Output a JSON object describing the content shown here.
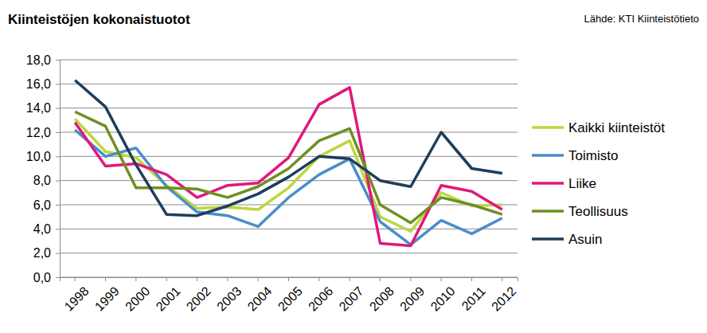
{
  "chart_data": {
    "type": "line",
    "title": "Kiinteistöjen kokonaistuotot",
    "source": "Lähde: KTI Kiinteistötieto",
    "categories": [
      "1998",
      "1999",
      "2000",
      "2001",
      "2002",
      "2003",
      "2004",
      "2005",
      "2006",
      "2007",
      "2008",
      "2009",
      "2010",
      "2011",
      "2012"
    ],
    "series": [
      {
        "name": "Kaikki kiinteistöt",
        "color": "#bdd73e",
        "values": [
          13.1,
          10.4,
          9.9,
          7.6,
          5.7,
          5.8,
          5.6,
          7.4,
          10.0,
          11.3,
          5.0,
          3.8,
          7.0,
          5.9,
          6.0
        ]
      },
      {
        "name": "Toimisto",
        "color": "#4a8ec9",
        "values": [
          12.2,
          10.0,
          10.7,
          7.5,
          5.4,
          5.1,
          4.2,
          6.6,
          8.5,
          9.8,
          4.6,
          2.7,
          4.7,
          3.6,
          4.9
        ]
      },
      {
        "name": "Liike",
        "color": "#e2177c",
        "values": [
          12.8,
          9.2,
          9.4,
          8.5,
          6.6,
          7.6,
          7.8,
          9.9,
          14.3,
          15.7,
          2.8,
          2.6,
          7.6,
          7.1,
          5.6
        ]
      },
      {
        "name": "Teollisuus",
        "color": "#6e8f24",
        "values": [
          13.7,
          12.5,
          7.4,
          7.4,
          7.3,
          6.6,
          7.5,
          9.0,
          11.3,
          12.3,
          6.0,
          4.5,
          6.6,
          6.0,
          5.2
        ]
      },
      {
        "name": "Asuin",
        "color": "#1f3d5c",
        "values": [
          16.3,
          14.1,
          9.3,
          5.2,
          5.1,
          5.9,
          6.9,
          8.3,
          10.0,
          9.8,
          8.0,
          7.5,
          12.0,
          9.0,
          8.6
        ]
      }
    ],
    "ylim": [
      0,
      18
    ],
    "yticks": [
      {
        "value": 0,
        "label": "0,0"
      },
      {
        "value": 2,
        "label": "2,0"
      },
      {
        "value": 4,
        "label": "4,0"
      },
      {
        "value": 6,
        "label": "6,0"
      },
      {
        "value": 8,
        "label": "8,0"
      },
      {
        "value": 10,
        "label": "10,0"
      },
      {
        "value": 12,
        "label": "12,0"
      },
      {
        "value": 14,
        "label": "14,0"
      },
      {
        "value": 16,
        "label": "16,0"
      },
      {
        "value": 18,
        "label": "18,0"
      }
    ],
    "grid": true,
    "legend": "right"
  }
}
